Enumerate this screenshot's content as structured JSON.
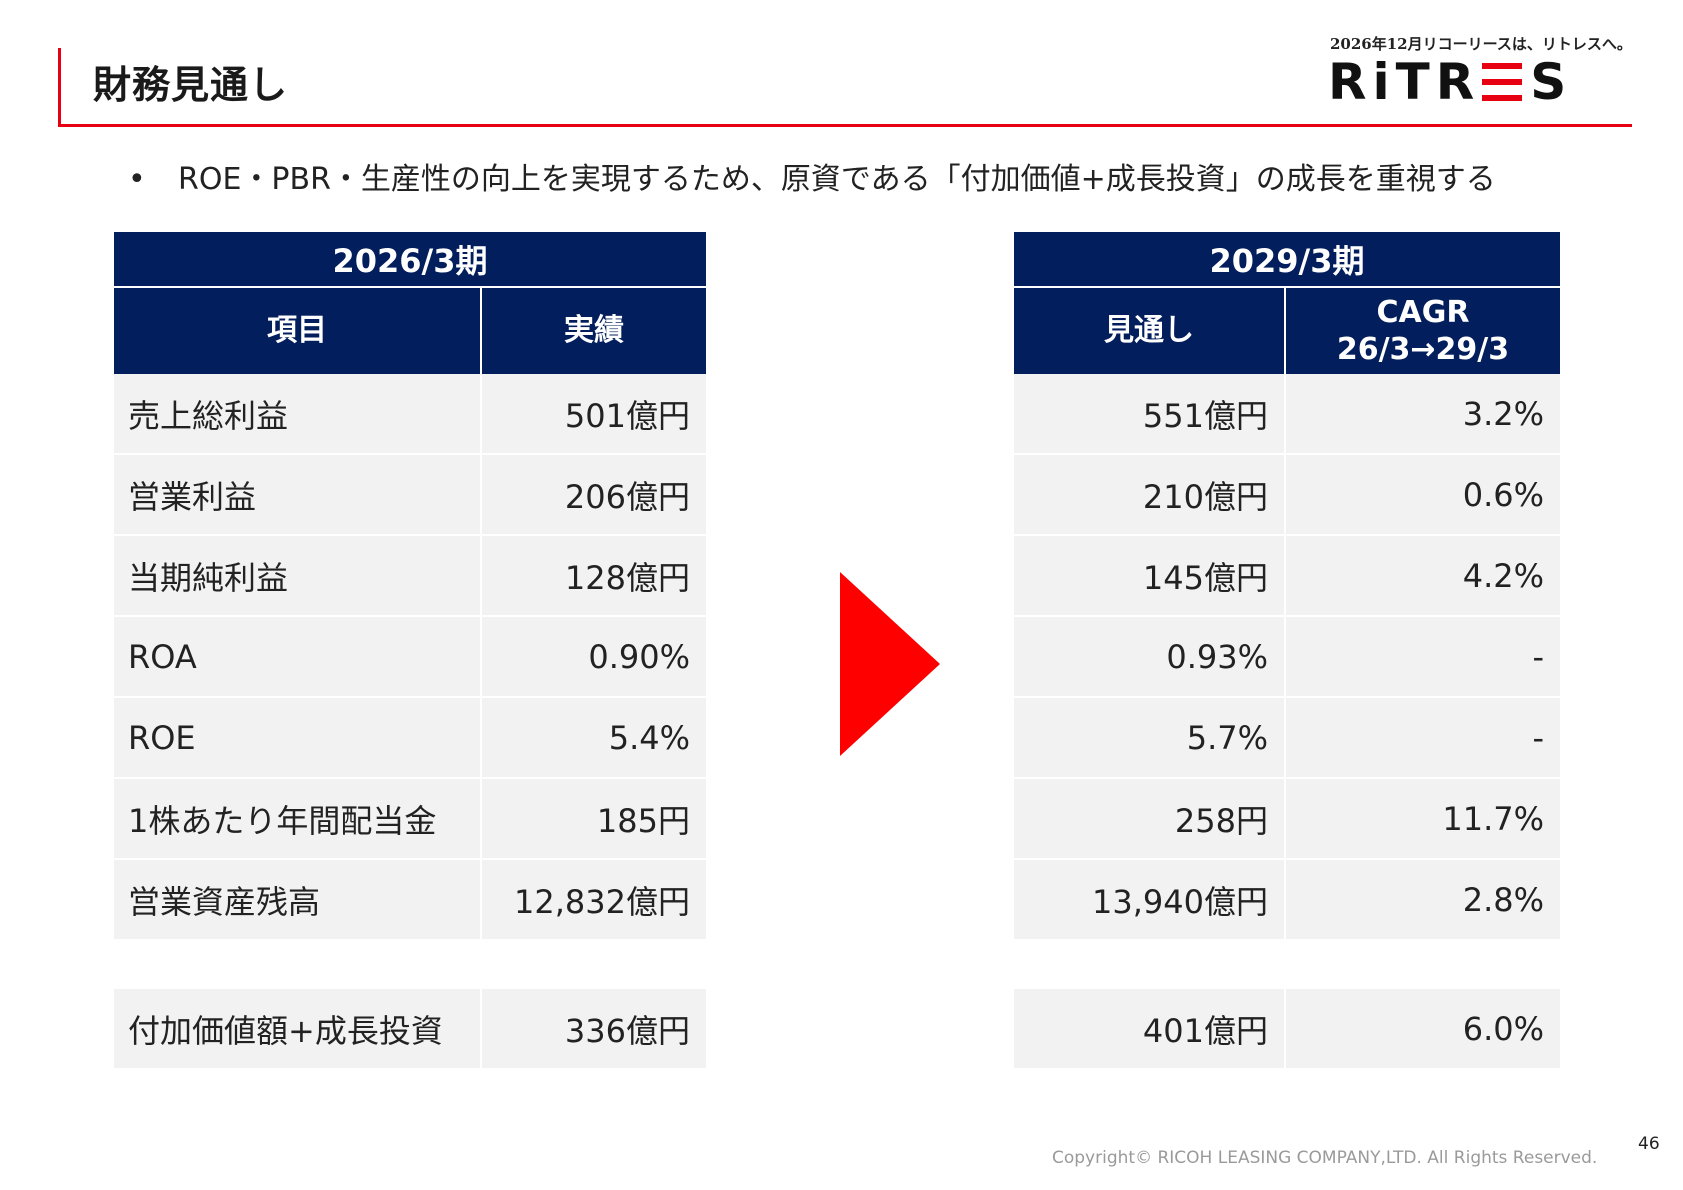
{
  "header": {
    "title": "財務見通し",
    "tagline": "2026年12月リコーリースは、リトレスへ。",
    "logo_left": "RiTR",
    "logo_right": "S"
  },
  "bullet": {
    "marker": "•",
    "text": "ROE・PBR・生産性の向上を実現するため、原資である「付加価値+成長投資」の成長を重視する"
  },
  "left_table": {
    "period": "2026/3期",
    "col_item": "項目",
    "col_actual": "実績",
    "rows": [
      {
        "item": "売上総利益",
        "actual": "501億円"
      },
      {
        "item": "営業利益",
        "actual": "206億円"
      },
      {
        "item": "当期純利益",
        "actual": "128億円"
      },
      {
        "item": "ROA",
        "actual": "0.90%"
      },
      {
        "item": "ROE",
        "actual": "5.4%"
      },
      {
        "item": "1株あたり年間配当金",
        "actual": "185円"
      },
      {
        "item": "営業資産残高",
        "actual": "12,832億円"
      }
    ],
    "extra_row": {
      "item": "付加価値額+成長投資",
      "actual": "336億円"
    }
  },
  "right_table": {
    "period": "2029/3期",
    "col_outlook": "見通し",
    "col_cagr_line1": "CAGR",
    "col_cagr_line2": "26/3→29/3",
    "rows": [
      {
        "outlook": "551億円",
        "cagr": "3.2%"
      },
      {
        "outlook": "210億円",
        "cagr": "0.6%"
      },
      {
        "outlook": "145億円",
        "cagr": "4.2%"
      },
      {
        "outlook": "0.93%",
        "cagr": "-"
      },
      {
        "outlook": "5.7%",
        "cagr": "-"
      },
      {
        "outlook": "258円",
        "cagr": "11.7%"
      },
      {
        "outlook": "13,940億円",
        "cagr": "2.8%"
      }
    ],
    "extra_row": {
      "outlook": "401億円",
      "cagr": "6.0%"
    }
  },
  "colors": {
    "accent_red": "#e60012",
    "header_navy": "#031e5c",
    "cell_gray": "#f2f2f2",
    "arrow_red": "#ff0000"
  },
  "footer": {
    "copyright": "Copyright© RICOH LEASING COMPANY,LTD.  All Rights Reserved.",
    "page_number": "46"
  }
}
